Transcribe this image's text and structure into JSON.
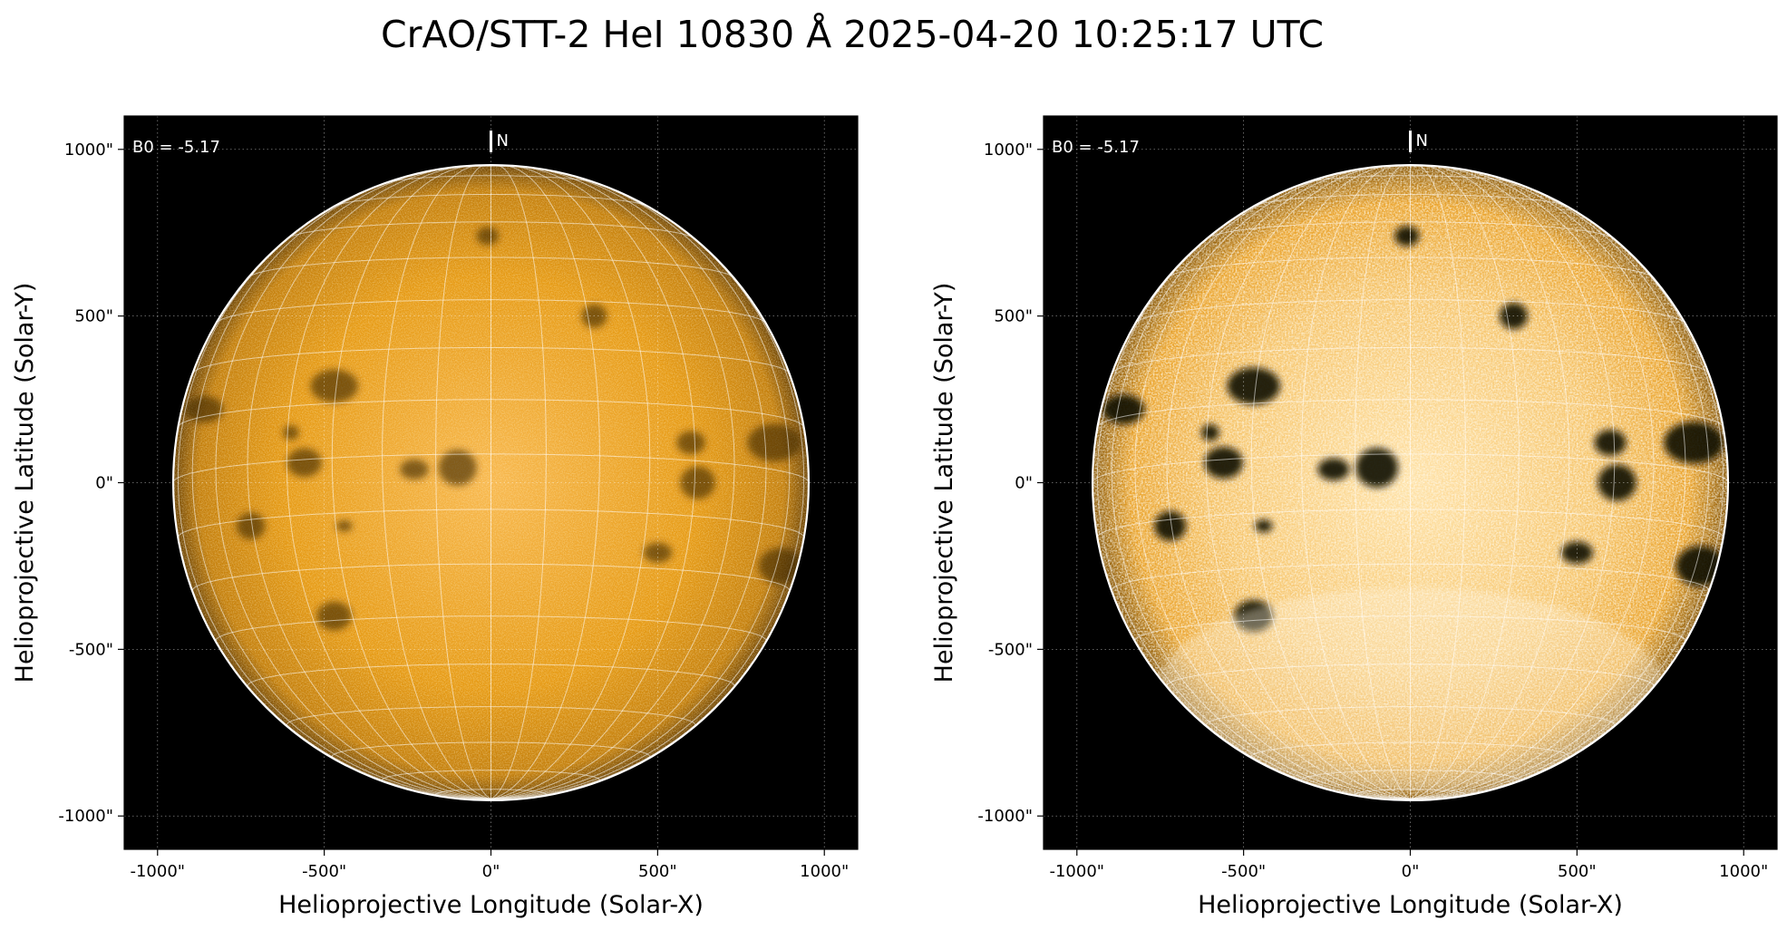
{
  "title": "CrAO/STT-2 HeI 10830 Å 2025-04-20 10:25:17 UTC",
  "colors": {
    "sun_core": "#f8b84e",
    "sun_mid": "#e69a14",
    "sun_limb": "#6e4608",
    "background": "#000000",
    "grid": "#ffffff"
  },
  "panels": [
    {
      "id": "left",
      "contrast": "normal",
      "b0_label": "B0 = -5.17",
      "north_label": "N",
      "xlabel": "Helioprojective Longitude (Solar-X)",
      "ylabel": "Helioprojective Latitude (Solar-Y)",
      "x_ticks": [
        "-1000\"",
        "-500\"",
        "0\"",
        "500\"",
        "1000\""
      ],
      "y_ticks": [
        "1000\"",
        "500\"",
        "0\"",
        "-500\"",
        "-1000\""
      ]
    },
    {
      "id": "right",
      "contrast": "enhanced",
      "b0_label": "B0 = -5.17",
      "north_label": "N",
      "xlabel": "Helioprojective Longitude (Solar-X)",
      "ylabel": "Helioprojective Latitude (Solar-Y)",
      "x_ticks": [
        "-1000\"",
        "-500\"",
        "0\"",
        "500\"",
        "1000\""
      ],
      "y_ticks": [
        "1000\"",
        "500\"",
        "0\"",
        "-500\"",
        "-1000\""
      ]
    }
  ],
  "axis": {
    "x_tick_values": [
      -1000,
      -500,
      0,
      500,
      1000
    ],
    "y_tick_values": [
      1000,
      500,
      0,
      -500,
      -1000
    ],
    "range": [
      -1100,
      1100
    ]
  },
  "sun": {
    "radius_arcsec": 953,
    "b0_deg": -5.17
  },
  "dark_features": [
    {
      "x": -470,
      "y": 290,
      "r": 75
    },
    {
      "x": -560,
      "y": 60,
      "r": 55
    },
    {
      "x": -100,
      "y": 45,
      "r": 60
    },
    {
      "x": -230,
      "y": 40,
      "r": 45
    },
    {
      "x": 600,
      "y": 120,
      "r": 45
    },
    {
      "x": 620,
      "y": 0,
      "r": 55
    },
    {
      "x": 850,
      "y": 120,
      "r": 85
    },
    {
      "x": -470,
      "y": -400,
      "r": 55
    },
    {
      "x": -720,
      "y": -130,
      "r": 45
    },
    {
      "x": -860,
      "y": 220,
      "r": 60
    },
    {
      "x": -10,
      "y": 740,
      "r": 35
    },
    {
      "x": 310,
      "y": 500,
      "r": 40
    },
    {
      "x": 500,
      "y": -210,
      "r": 45
    },
    {
      "x": 870,
      "y": -250,
      "r": 70
    },
    {
      "x": -600,
      "y": 150,
      "r": 25
    },
    {
      "x": -440,
      "y": -130,
      "r": 25
    }
  ]
}
